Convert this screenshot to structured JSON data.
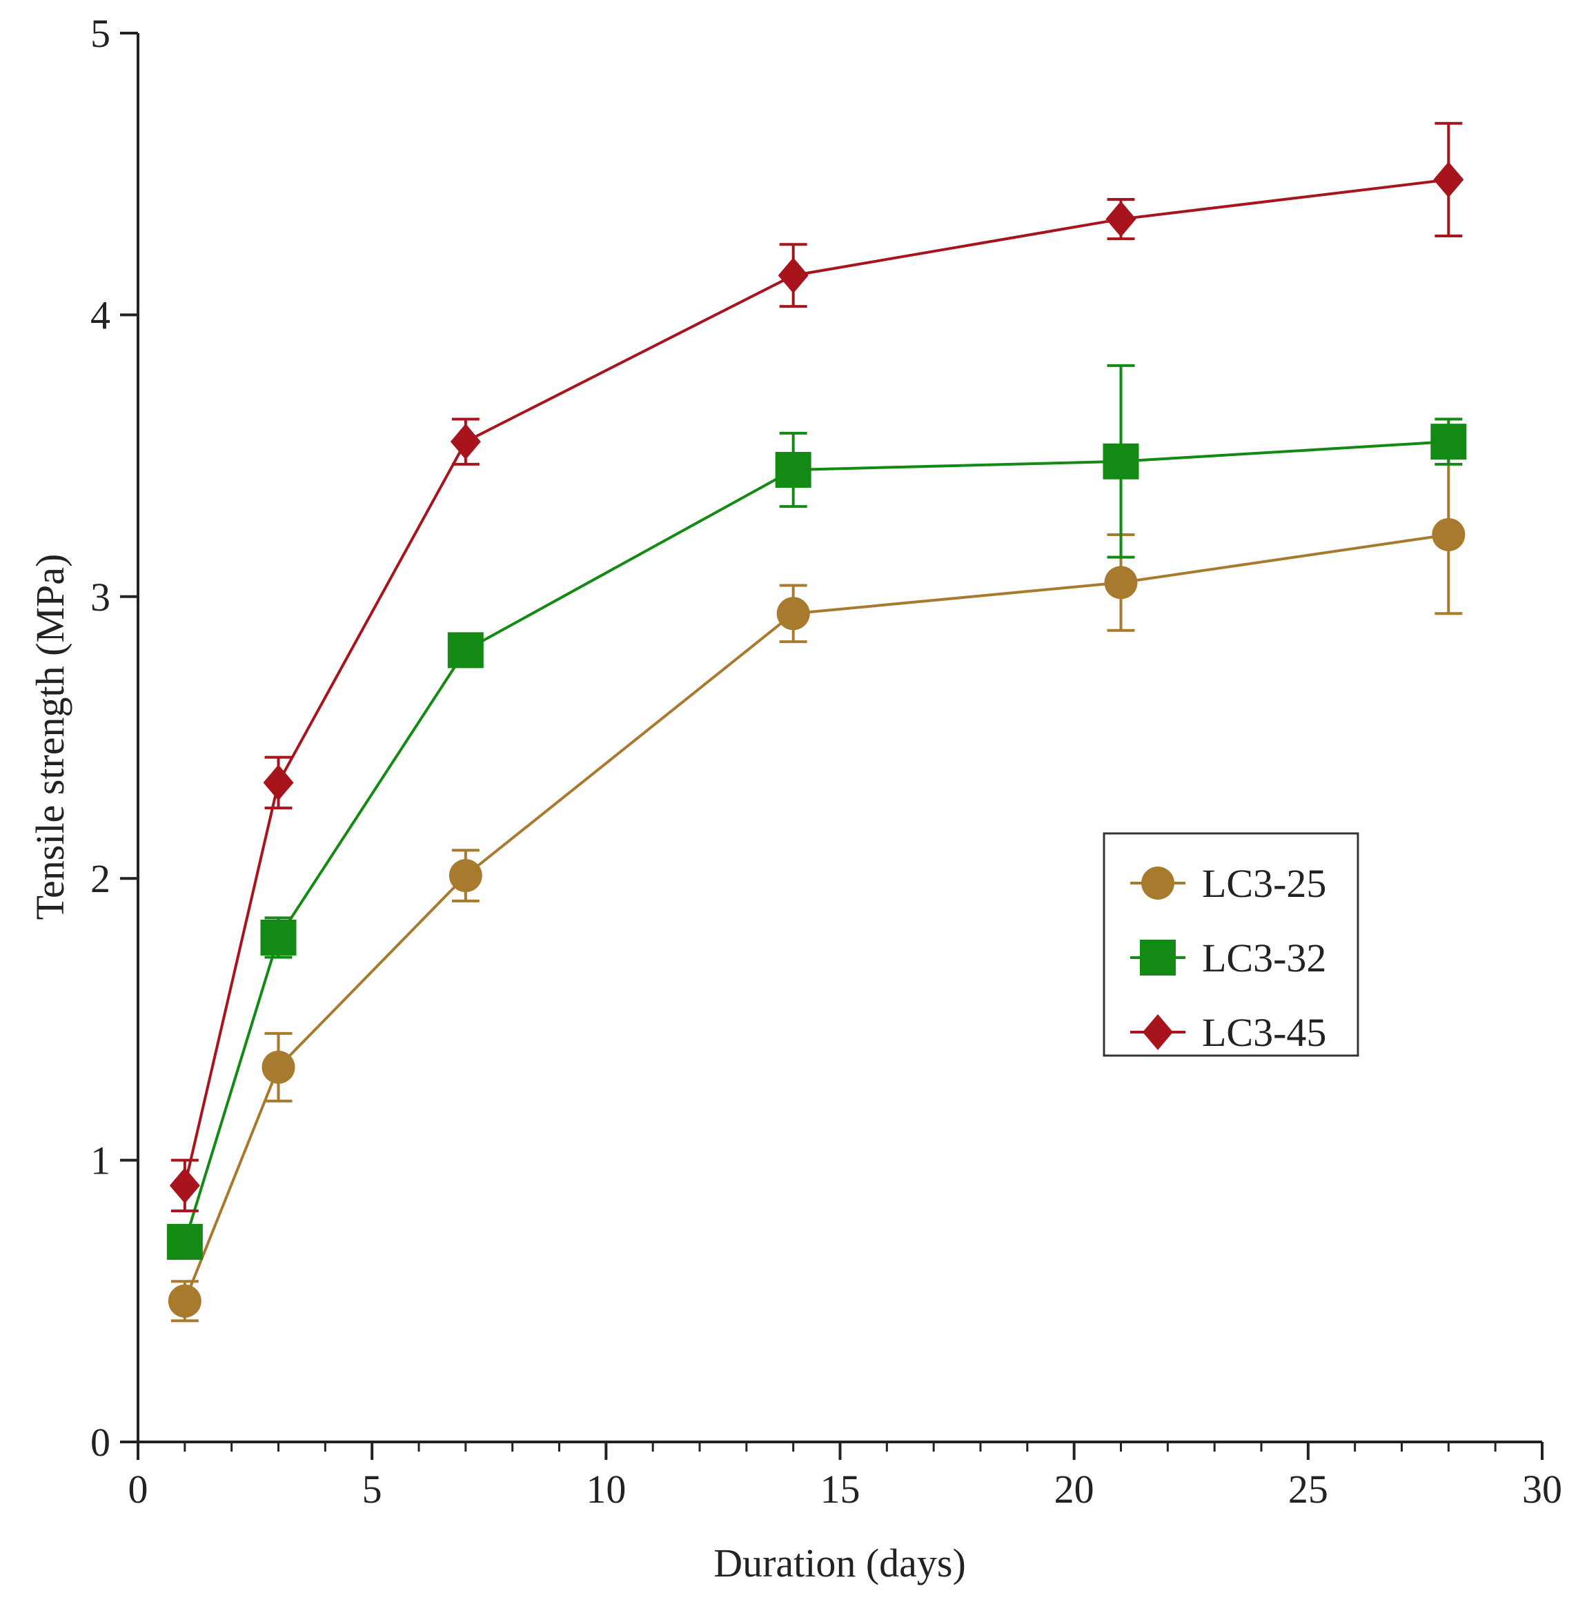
{
  "chart_data": {
    "type": "line",
    "title": "",
    "xlabel": "Duration (days)",
    "ylabel": "Tensile strength (MPa)",
    "xlim": [
      0,
      30
    ],
    "ylim": [
      0,
      5
    ],
    "x_ticks": [
      0,
      5,
      10,
      15,
      20,
      25,
      30
    ],
    "x_tick_labels": [
      "0",
      "5",
      "10",
      "15",
      "20",
      "25",
      "30"
    ],
    "y_ticks": [
      0,
      1,
      2,
      3,
      4,
      5
    ],
    "y_tick_labels": [
      "0",
      "1",
      "2",
      "3",
      "4",
      "5"
    ],
    "x_minor_step": 1,
    "grid": false,
    "legend_position": "center-right",
    "x": [
      1,
      3,
      7,
      14,
      21,
      28
    ],
    "series": [
      {
        "name": "LC3-25",
        "marker": "circle",
        "color": "#a87a2e",
        "values": [
          0.5,
          1.33,
          2.01,
          2.94,
          3.05,
          3.22
        ],
        "errors": [
          0.07,
          0.12,
          0.09,
          0.1,
          0.17,
          0.28
        ]
      },
      {
        "name": "LC3-32",
        "marker": "square",
        "color": "#138a13",
        "values": [
          0.71,
          1.79,
          2.81,
          3.45,
          3.48,
          3.55
        ],
        "errors": [
          0.04,
          0.07,
          0.03,
          0.13,
          0.34,
          0.08
        ]
      },
      {
        "name": "LC3-45",
        "marker": "diamond",
        "color": "#a8141c",
        "values": [
          0.91,
          2.34,
          3.55,
          4.14,
          4.34,
          4.48
        ],
        "errors": [
          0.09,
          0.09,
          0.08,
          0.11,
          0.07,
          0.2
        ]
      }
    ]
  }
}
